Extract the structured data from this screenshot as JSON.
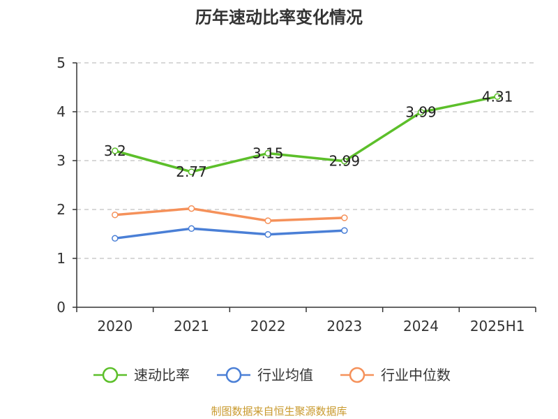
{
  "chart_data": {
    "type": "line",
    "title": "历年速动比率变化情况",
    "categories": [
      "2020",
      "2021",
      "2022",
      "2023",
      "2024",
      "2025H1"
    ],
    "ylim": [
      0,
      5
    ],
    "yticks": [
      "0",
      "1",
      "2",
      "3",
      "4",
      "5"
    ],
    "grid": "horizontal-dashed",
    "legend_position": "bottom",
    "series": [
      {
        "name": "速动比率",
        "color": "#5cbf2a",
        "values": [
          3.2,
          2.77,
          3.15,
          2.99,
          3.99,
          4.31
        ],
        "labels": [
          "3.2",
          "2.77",
          "3.15",
          "2.99",
          "3.99",
          "4.31"
        ]
      },
      {
        "name": "行业均值",
        "color": "#4a7fd6",
        "values": [
          1.41,
          1.61,
          1.49,
          1.57,
          null,
          null
        ]
      },
      {
        "name": "行业中位数",
        "color": "#f5915a",
        "values": [
          1.89,
          2.02,
          1.77,
          1.83,
          null,
          null
        ]
      }
    ],
    "source": "制图数据来自恒生聚源数据库"
  }
}
